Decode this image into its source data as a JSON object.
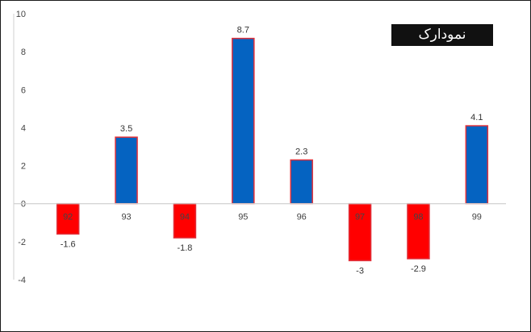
{
  "badge": {
    "text": "نمودارک"
  },
  "colors": {
    "positive_fill": "#0563c1",
    "negative_fill": "#ff0000",
    "bar_border": "#e0303a",
    "axis": "#d0d0d0",
    "tick_text": "#444444"
  },
  "chart_data": {
    "type": "bar",
    "categories": [
      "92",
      "93",
      "94",
      "95",
      "96",
      "97",
      "98",
      "99"
    ],
    "values": [
      -1.6,
      3.5,
      -1.8,
      8.7,
      2.3,
      -3,
      -2.9,
      4.1
    ],
    "data_labels": [
      "-1.6",
      "3.5",
      "-1.8",
      "8.7",
      "2.3",
      "-3",
      "-2.9",
      "4.1"
    ],
    "title": "",
    "xlabel": "",
    "ylabel": "",
    "ylim": [
      -4,
      10
    ],
    "yticks": [
      10,
      8,
      6,
      4,
      2,
      0,
      -2,
      -4
    ],
    "grid": false,
    "legend": "none"
  }
}
